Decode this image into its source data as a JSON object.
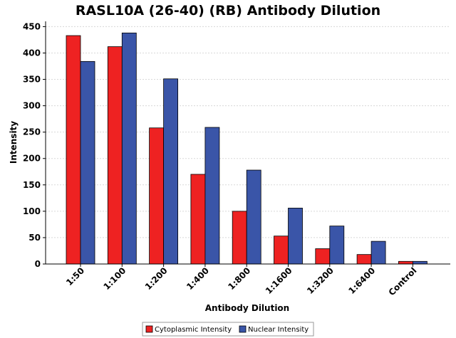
{
  "chart_data": {
    "type": "bar",
    "title": "RASL10A (26-40) (RB) Antibody Dilution",
    "xlabel": "Antibody Dilution",
    "ylabel": "Intensity",
    "categories": [
      "1:50",
      "1:100",
      "1:200",
      "1:400",
      "1:800",
      "1:1600",
      "1:3200",
      "1:6400",
      "Control"
    ],
    "series": [
      {
        "name": "Cytoplasmic Intensity",
        "color": "#ee2222",
        "values": [
          433,
          412,
          258,
          170,
          100,
          53,
          29,
          18,
          5
        ]
      },
      {
        "name": "Nuclear Intensity",
        "color": "#3a55a8",
        "values": [
          384,
          438,
          351,
          259,
          178,
          106,
          72,
          43,
          5
        ]
      }
    ],
    "ylim": [
      0,
      460
    ],
    "yticks": [
      0,
      50,
      100,
      150,
      200,
      250,
      300,
      350,
      400,
      450
    ],
    "grid": true,
    "legend_position": "bottom"
  }
}
